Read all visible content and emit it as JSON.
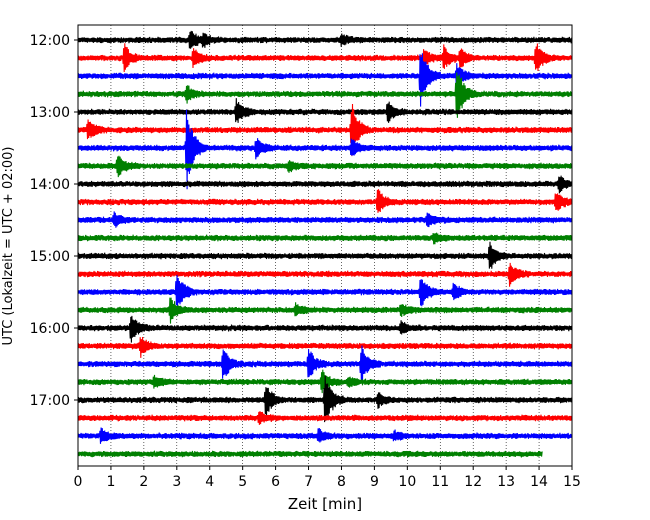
{
  "chart_data": {
    "type": "line",
    "title": "",
    "xlabel": "Zeit  [min]",
    "ylabel": "UTC (Lokalzeit = UTC + 02:00)",
    "xlim": [
      0,
      15
    ],
    "x_ticks": [
      0,
      1,
      2,
      3,
      4,
      5,
      6,
      7,
      8,
      9,
      10,
      11,
      12,
      13,
      14,
      15
    ],
    "y_ticks": [
      "12:00",
      "13:00",
      "14:00",
      "15:00",
      "16:00",
      "17:00"
    ],
    "grid": "vertical dotted at each minute",
    "row_interval_minutes": 15,
    "colors": [
      "#000000",
      "#ff0000",
      "#0000ff",
      "#008000"
    ],
    "rows": [
      {
        "start": "12:00",
        "color": "#000000",
        "events": [
          {
            "t": 3.4,
            "amp": 1.0
          },
          {
            "t": 3.8,
            "amp": 0.6
          },
          {
            "t": 8.0,
            "amp": 0.5
          }
        ]
      },
      {
        "start": "12:15",
        "color": "#ff0000",
        "events": [
          {
            "t": 1.4,
            "amp": 1.3
          },
          {
            "t": 3.5,
            "amp": 0.9
          },
          {
            "t": 10.5,
            "amp": 0.8
          },
          {
            "t": 11.1,
            "amp": 1.2
          },
          {
            "t": 11.6,
            "amp": 1.0
          },
          {
            "t": 13.9,
            "amp": 1.6
          }
        ]
      },
      {
        "start": "12:30",
        "color": "#0000ff",
        "events": [
          {
            "t": 10.4,
            "amp": 3.2
          },
          {
            "t": 11.5,
            "amp": 1.2
          }
        ]
      },
      {
        "start": "12:45",
        "color": "#008000",
        "events": [
          {
            "t": 3.3,
            "amp": 0.8
          },
          {
            "t": 11.5,
            "amp": 3.0
          }
        ]
      },
      {
        "start": "13:00",
        "color": "#000000",
        "events": [
          {
            "t": 4.8,
            "amp": 1.2
          },
          {
            "t": 9.4,
            "amp": 1.0
          }
        ]
      },
      {
        "start": "13:15",
        "color": "#ff0000",
        "events": [
          {
            "t": 0.3,
            "amp": 1.0
          },
          {
            "t": 8.3,
            "amp": 2.8
          }
        ]
      },
      {
        "start": "13:30",
        "color": "#0000ff",
        "events": [
          {
            "t": 3.3,
            "amp": 4.2
          },
          {
            "t": 5.4,
            "amp": 1.0
          },
          {
            "t": 8.3,
            "amp": 1.0
          }
        ]
      },
      {
        "start": "13:45",
        "color": "#008000",
        "events": [
          {
            "t": 1.2,
            "amp": 1.0
          },
          {
            "t": 6.4,
            "amp": 0.6
          }
        ]
      },
      {
        "start": "14:00",
        "color": "#000000",
        "events": [
          {
            "t": 14.6,
            "amp": 0.8
          }
        ]
      },
      {
        "start": "14:15",
        "color": "#ff0000",
        "events": [
          {
            "t": 9.1,
            "amp": 1.3
          },
          {
            "t": 14.5,
            "amp": 1.1
          }
        ]
      },
      {
        "start": "14:30",
        "color": "#0000ff",
        "events": [
          {
            "t": 1.1,
            "amp": 0.7
          },
          {
            "t": 10.6,
            "amp": 0.7
          }
        ]
      },
      {
        "start": "14:45",
        "color": "#008000",
        "events": [
          {
            "t": 10.8,
            "amp": 0.5
          }
        ]
      },
      {
        "start": "15:00",
        "color": "#000000",
        "events": [
          {
            "t": 12.5,
            "amp": 1.4
          }
        ]
      },
      {
        "start": "15:15",
        "color": "#ff0000",
        "events": [
          {
            "t": 13.1,
            "amp": 1.2
          }
        ]
      },
      {
        "start": "15:30",
        "color": "#0000ff",
        "events": [
          {
            "t": 3.0,
            "amp": 2.0
          },
          {
            "t": 10.4,
            "amp": 1.6
          },
          {
            "t": 11.4,
            "amp": 0.8
          }
        ]
      },
      {
        "start": "15:45",
        "color": "#008000",
        "events": [
          {
            "t": 2.8,
            "amp": 1.3
          },
          {
            "t": 6.6,
            "amp": 0.6
          },
          {
            "t": 9.8,
            "amp": 0.5
          }
        ]
      },
      {
        "start": "16:00",
        "color": "#000000",
        "events": [
          {
            "t": 1.6,
            "amp": 1.3
          },
          {
            "t": 9.8,
            "amp": 0.6
          }
        ]
      },
      {
        "start": "16:15",
        "color": "#ff0000",
        "events": [
          {
            "t": 1.9,
            "amp": 1.0
          }
        ]
      },
      {
        "start": "16:30",
        "color": "#0000ff",
        "events": [
          {
            "t": 4.4,
            "amp": 1.6
          },
          {
            "t": 7.0,
            "amp": 1.6
          },
          {
            "t": 8.6,
            "amp": 1.9
          }
        ]
      },
      {
        "start": "16:45",
        "color": "#008000",
        "events": [
          {
            "t": 2.3,
            "amp": 0.6
          },
          {
            "t": 7.4,
            "amp": 1.2
          },
          {
            "t": 8.2,
            "amp": 0.5
          }
        ]
      },
      {
        "start": "17:00",
        "color": "#000000",
        "events": [
          {
            "t": 5.7,
            "amp": 1.6
          },
          {
            "t": 7.5,
            "amp": 2.8
          },
          {
            "t": 9.1,
            "amp": 0.7
          }
        ]
      },
      {
        "start": "17:15",
        "color": "#ff0000",
        "events": [
          {
            "t": 5.5,
            "amp": 0.5
          }
        ]
      },
      {
        "start": "17:30",
        "color": "#0000ff",
        "events": [
          {
            "t": 0.7,
            "amp": 0.7
          },
          {
            "t": 7.3,
            "amp": 0.6
          },
          {
            "t": 9.6,
            "amp": 0.4
          }
        ]
      },
      {
        "start": "17:45",
        "color": "#008000",
        "end_minute": 14.1,
        "events": []
      }
    ]
  }
}
